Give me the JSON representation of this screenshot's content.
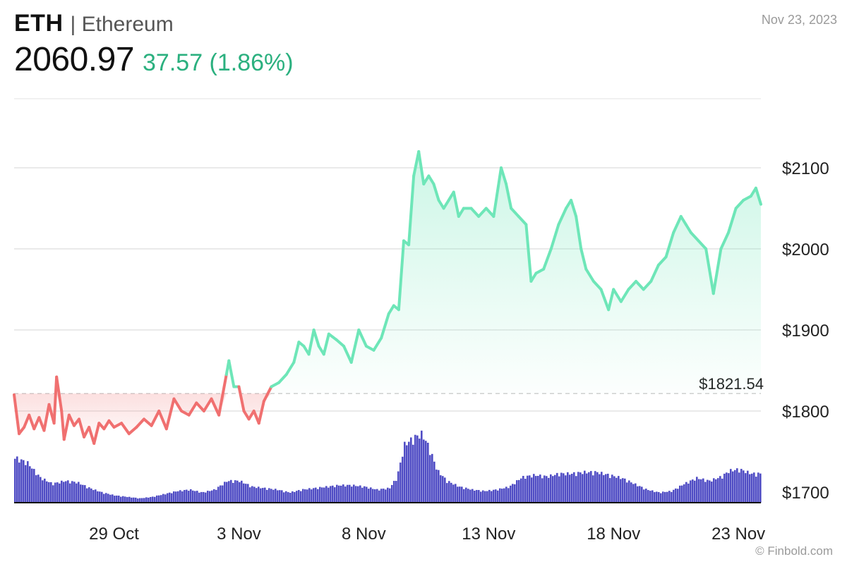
{
  "header": {
    "ticker": "ETH",
    "separator_name": "| Ethereum",
    "price": "2060.97",
    "change": "37.57 (1.86%)",
    "date": "Nov 23, 2023"
  },
  "credit": "© Finbold.com",
  "colors": {
    "up_line": "#6ee6b8",
    "down_line": "#f07070",
    "volume": "#4f4cc4",
    "change_text": "#2bb07f"
  },
  "chart_data": {
    "type": "line",
    "reference": {
      "label": "$1821.54",
      "value": 1821.54
    },
    "y_ticks": [
      {
        "value": 2100,
        "label": "$2100"
      },
      {
        "value": 2000,
        "label": "$2000"
      },
      {
        "value": 1900,
        "label": "$1900"
      },
      {
        "value": 1800,
        "label": "$1800"
      },
      {
        "value": 1700,
        "label": "$1700"
      }
    ],
    "x_ticks": [
      {
        "day": 4,
        "label": "29 Oct"
      },
      {
        "day": 9,
        "label": "3 Nov"
      },
      {
        "day": 14,
        "label": "8 Nov"
      },
      {
        "day": 19,
        "label": "13 Nov"
      },
      {
        "day": 24,
        "label": "18 Nov"
      },
      {
        "day": 29,
        "label": "23 Nov"
      }
    ],
    "ylim": [
      1700,
      2100
    ],
    "grid": true,
    "price_series": [
      [
        0,
        1820
      ],
      [
        0.2,
        1772
      ],
      [
        0.4,
        1780
      ],
      [
        0.6,
        1795
      ],
      [
        0.8,
        1778
      ],
      [
        1.0,
        1792
      ],
      [
        1.2,
        1776
      ],
      [
        1.4,
        1808
      ],
      [
        1.6,
        1785
      ],
      [
        1.7,
        1842
      ],
      [
        1.9,
        1800
      ],
      [
        2.0,
        1765
      ],
      [
        2.2,
        1795
      ],
      [
        2.4,
        1782
      ],
      [
        2.6,
        1790
      ],
      [
        2.8,
        1768
      ],
      [
        3.0,
        1780
      ],
      [
        3.2,
        1760
      ],
      [
        3.4,
        1785
      ],
      [
        3.6,
        1778
      ],
      [
        3.8,
        1788
      ],
      [
        4.0,
        1780
      ],
      [
        4.3,
        1785
      ],
      [
        4.6,
        1772
      ],
      [
        4.9,
        1780
      ],
      [
        5.2,
        1790
      ],
      [
        5.5,
        1782
      ],
      [
        5.8,
        1800
      ],
      [
        6.1,
        1778
      ],
      [
        6.4,
        1815
      ],
      [
        6.7,
        1800
      ],
      [
        7.0,
        1795
      ],
      [
        7.3,
        1810
      ],
      [
        7.6,
        1800
      ],
      [
        7.9,
        1815
      ],
      [
        8.2,
        1795
      ],
      [
        8.5,
        1845
      ],
      [
        8.6,
        1862
      ],
      [
        8.8,
        1830
      ],
      [
        9.0,
        1830
      ],
      [
        9.2,
        1800
      ],
      [
        9.4,
        1790
      ],
      [
        9.6,
        1800
      ],
      [
        9.8,
        1785
      ],
      [
        10.0,
        1812
      ],
      [
        10.3,
        1830
      ],
      [
        10.6,
        1835
      ],
      [
        10.9,
        1845
      ],
      [
        11.2,
        1860
      ],
      [
        11.4,
        1885
      ],
      [
        11.6,
        1880
      ],
      [
        11.8,
        1870
      ],
      [
        12.0,
        1900
      ],
      [
        12.2,
        1880
      ],
      [
        12.4,
        1870
      ],
      [
        12.6,
        1895
      ],
      [
        12.9,
        1888
      ],
      [
        13.2,
        1880
      ],
      [
        13.5,
        1860
      ],
      [
        13.8,
        1900
      ],
      [
        14.1,
        1880
      ],
      [
        14.4,
        1875
      ],
      [
        14.7,
        1890
      ],
      [
        15.0,
        1920
      ],
      [
        15.2,
        1930
      ],
      [
        15.4,
        1925
      ],
      [
        15.6,
        2010
      ],
      [
        15.8,
        2005
      ],
      [
        16.0,
        2090
      ],
      [
        16.2,
        2120
      ],
      [
        16.4,
        2080
      ],
      [
        16.6,
        2090
      ],
      [
        16.8,
        2080
      ],
      [
        17.0,
        2060
      ],
      [
        17.2,
        2050
      ],
      [
        17.4,
        2060
      ],
      [
        17.6,
        2070
      ],
      [
        17.8,
        2040
      ],
      [
        18.0,
        2050
      ],
      [
        18.3,
        2050
      ],
      [
        18.6,
        2040
      ],
      [
        18.9,
        2050
      ],
      [
        19.2,
        2040
      ],
      [
        19.5,
        2100
      ],
      [
        19.7,
        2080
      ],
      [
        19.9,
        2050
      ],
      [
        20.2,
        2040
      ],
      [
        20.5,
        2030
      ],
      [
        20.7,
        1960
      ],
      [
        20.9,
        1970
      ],
      [
        21.2,
        1975
      ],
      [
        21.5,
        2000
      ],
      [
        21.8,
        2030
      ],
      [
        22.1,
        2050
      ],
      [
        22.3,
        2060
      ],
      [
        22.5,
        2040
      ],
      [
        22.7,
        2000
      ],
      [
        22.9,
        1975
      ],
      [
        23.2,
        1960
      ],
      [
        23.5,
        1950
      ],
      [
        23.8,
        1925
      ],
      [
        24.0,
        1950
      ],
      [
        24.3,
        1935
      ],
      [
        24.6,
        1950
      ],
      [
        24.9,
        1960
      ],
      [
        25.2,
        1950
      ],
      [
        25.5,
        1960
      ],
      [
        25.8,
        1980
      ],
      [
        26.1,
        1990
      ],
      [
        26.4,
        2020
      ],
      [
        26.7,
        2040
      ],
      [
        26.9,
        2030
      ],
      [
        27.1,
        2020
      ],
      [
        27.4,
        2010
      ],
      [
        27.7,
        2000
      ],
      [
        28.0,
        1945
      ],
      [
        28.3,
        2000
      ],
      [
        28.6,
        2020
      ],
      [
        28.9,
        2050
      ],
      [
        29.2,
        2060
      ],
      [
        29.5,
        2065
      ],
      [
        29.7,
        2075
      ],
      [
        29.9,
        2055
      ]
    ],
    "volume_series": [
      [
        0,
        0.62
      ],
      [
        0.5,
        0.55
      ],
      [
        1.0,
        0.35
      ],
      [
        1.5,
        0.26
      ],
      [
        2.0,
        0.3
      ],
      [
        2.5,
        0.28
      ],
      [
        3.0,
        0.2
      ],
      [
        3.5,
        0.14
      ],
      [
        4.0,
        0.1
      ],
      [
        4.5,
        0.08
      ],
      [
        5.0,
        0.06
      ],
      [
        5.5,
        0.08
      ],
      [
        6.0,
        0.12
      ],
      [
        6.5,
        0.16
      ],
      [
        7.0,
        0.18
      ],
      [
        7.5,
        0.14
      ],
      [
        8.0,
        0.18
      ],
      [
        8.5,
        0.3
      ],
      [
        9.0,
        0.3
      ],
      [
        9.5,
        0.22
      ],
      [
        10.0,
        0.2
      ],
      [
        10.5,
        0.18
      ],
      [
        11.0,
        0.14
      ],
      [
        11.5,
        0.18
      ],
      [
        12.0,
        0.2
      ],
      [
        12.5,
        0.22
      ],
      [
        13.0,
        0.24
      ],
      [
        13.5,
        0.24
      ],
      [
        14.0,
        0.22
      ],
      [
        14.5,
        0.18
      ],
      [
        15.0,
        0.2
      ],
      [
        15.3,
        0.35
      ],
      [
        15.6,
        0.8
      ],
      [
        16.0,
        0.9
      ],
      [
        16.3,
        0.95
      ],
      [
        16.6,
        0.75
      ],
      [
        16.9,
        0.45
      ],
      [
        17.3,
        0.3
      ],
      [
        17.8,
        0.22
      ],
      [
        18.3,
        0.18
      ],
      [
        18.8,
        0.16
      ],
      [
        19.3,
        0.18
      ],
      [
        19.8,
        0.22
      ],
      [
        20.3,
        0.35
      ],
      [
        20.8,
        0.38
      ],
      [
        21.3,
        0.36
      ],
      [
        21.8,
        0.4
      ],
      [
        22.3,
        0.4
      ],
      [
        22.8,
        0.42
      ],
      [
        23.3,
        0.42
      ],
      [
        23.8,
        0.38
      ],
      [
        24.3,
        0.34
      ],
      [
        24.8,
        0.26
      ],
      [
        25.3,
        0.18
      ],
      [
        25.8,
        0.14
      ],
      [
        26.3,
        0.16
      ],
      [
        26.8,
        0.26
      ],
      [
        27.3,
        0.34
      ],
      [
        27.8,
        0.3
      ],
      [
        28.3,
        0.36
      ],
      [
        28.6,
        0.44
      ],
      [
        29.0,
        0.46
      ],
      [
        29.5,
        0.4
      ],
      [
        29.9,
        0.4
      ]
    ]
  }
}
